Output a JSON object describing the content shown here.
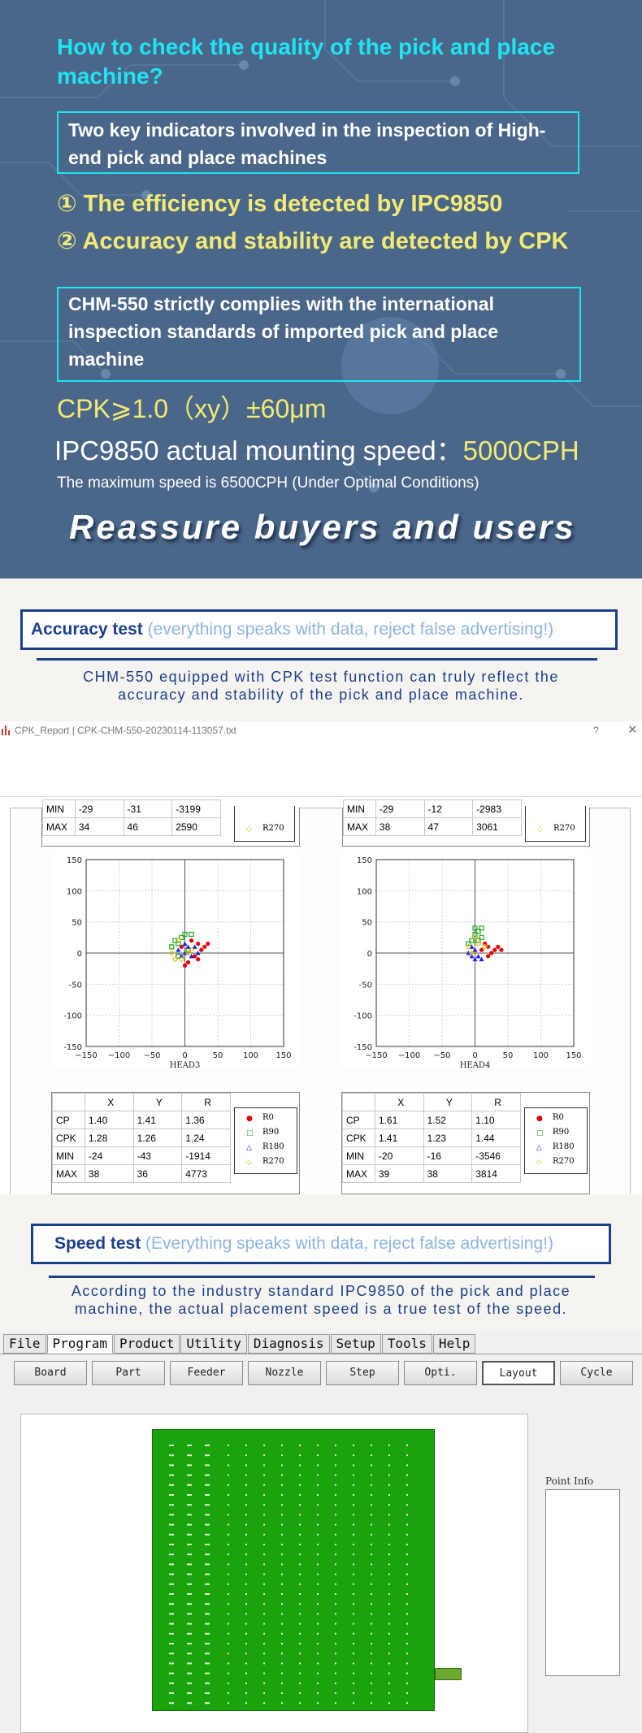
{
  "hero": {
    "title": "How to check the quality of the pick and place machine?",
    "box1": "Two key indicators involved in the inspection of High-end pick and place machines",
    "indicator1": "① The efficiency is detected by IPC9850",
    "indicator2": "② Accuracy and stability are detected by CPK",
    "box2": "CHM-550 strictly complies with the international inspection standards of imported pick and place machine",
    "cpk_spec": "CPK⩾1.0（xy）±60μm",
    "speed_label": "IPC9850 actual mounting speed：",
    "speed_value": "5000CPH",
    "max_speed": "The maximum speed is 6500CPH (Under Optimal Conditions)",
    "slogan": "Reassure buyers and users"
  },
  "accuracy": {
    "title": "Accuracy test",
    "subtitle": "(everything speaks with data, reject false advertising!)",
    "desc_line1": "CHM-550 equipped with CPK test function can truly reflect the",
    "desc_line2": "accuracy and stability of the pick and place machine."
  },
  "cpk_window": {
    "title": "CPK_Report | CPK-CHM-550-20230114-113057.txt",
    "help": "?",
    "close": "✕",
    "columns": [
      "",
      "X",
      "Y",
      "R"
    ],
    "legend": [
      "R0",
      "R90",
      "R180",
      "R270"
    ],
    "legend_colors": [
      "#e00000",
      "#22aa22",
      "#2222dd",
      "#e0c000"
    ],
    "top_left": {
      "min": [
        "MIN",
        "-29",
        "-31",
        "-3199"
      ],
      "max": [
        "MAX",
        "34",
        "46",
        "2590"
      ]
    },
    "top_right": {
      "min": [
        "MIN",
        "-29",
        "-12",
        "-2983"
      ],
      "max": [
        "MAX",
        "38",
        "47",
        "3061"
      ]
    },
    "head3": {
      "label": "HEAD3",
      "rows": [
        [
          "CP",
          "1.40",
          "1.41",
          "1.36"
        ],
        [
          "CPK",
          "1.28",
          "1.26",
          "1.24"
        ],
        [
          "MIN",
          "-24",
          "-43",
          "-1914"
        ],
        [
          "MAX",
          "38",
          "36",
          "4773"
        ]
      ]
    },
    "head4": {
      "label": "HEAD4",
      "rows": [
        [
          "CP",
          "1.61",
          "1.52",
          "1.10"
        ],
        [
          "CPK",
          "1.41",
          "1.23",
          "1.44"
        ],
        [
          "MIN",
          "-20",
          "-16",
          "-3546"
        ],
        [
          "MAX",
          "39",
          "38",
          "3814"
        ]
      ]
    },
    "axis_ticks_y": [
      "150",
      "100",
      "50",
      "0",
      "-50",
      "-100",
      "-150"
    ],
    "axis_ticks_x": [
      "−150",
      "−100",
      "−50",
      "0",
      "50",
      "100",
      "150"
    ]
  },
  "chart_data": [
    {
      "type": "scatter",
      "xlabel": "HEAD3",
      "xlim": [
        -150,
        150
      ],
      "ylim": [
        -150,
        150
      ],
      "grid": true,
      "series": [
        {
          "name": "R0",
          "points": [
            [
              10,
              20
            ],
            [
              20,
              15
            ],
            [
              25,
              5
            ],
            [
              30,
              10
            ],
            [
              15,
              -5
            ],
            [
              5,
              -15
            ],
            [
              -5,
              10
            ],
            [
              20,
              -10
            ],
            [
              35,
              15
            ],
            [
              0,
              -20
            ]
          ]
        },
        {
          "name": "R90",
          "points": [
            [
              -15,
              20
            ],
            [
              -10,
              15
            ],
            [
              -20,
              10
            ],
            [
              -5,
              25
            ],
            [
              0,
              30
            ],
            [
              10,
              30
            ],
            [
              -10,
              -5
            ],
            [
              5,
              5
            ]
          ]
        },
        {
          "name": "R180",
          "points": [
            [
              0,
              0
            ],
            [
              5,
              10
            ],
            [
              -5,
              -5
            ],
            [
              10,
              -5
            ],
            [
              15,
              10
            ],
            [
              -10,
              5
            ],
            [
              0,
              15
            ],
            [
              20,
              0
            ]
          ]
        },
        {
          "name": "R270",
          "points": [
            [
              -15,
              -10
            ],
            [
              -5,
              -10
            ],
            [
              5,
              0
            ],
            [
              -20,
              0
            ],
            [
              10,
              5
            ],
            [
              -10,
              20
            ]
          ]
        }
      ]
    },
    {
      "type": "scatter",
      "xlabel": "HEAD4",
      "xlim": [
        -150,
        150
      ],
      "ylim": [
        -150,
        150
      ],
      "grid": true,
      "series": [
        {
          "name": "R0",
          "points": [
            [
              20,
              10
            ],
            [
              30,
              5
            ],
            [
              35,
              10
            ],
            [
              25,
              0
            ],
            [
              15,
              15
            ],
            [
              10,
              5
            ],
            [
              20,
              -5
            ],
            [
              40,
              5
            ]
          ]
        },
        {
          "name": "R90",
          "points": [
            [
              0,
              30
            ],
            [
              5,
              35
            ],
            [
              10,
              25
            ],
            [
              -5,
              20
            ],
            [
              10,
              40
            ],
            [
              0,
              40
            ],
            [
              -10,
              15
            ],
            [
              5,
              20
            ]
          ]
        },
        {
          "name": "R180",
          "points": [
            [
              -5,
              -5
            ],
            [
              0,
              -10
            ],
            [
              5,
              -5
            ],
            [
              -10,
              0
            ],
            [
              0,
              5
            ],
            [
              10,
              -10
            ],
            [
              -5,
              10
            ]
          ]
        },
        {
          "name": "R270",
          "points": [
            [
              -10,
              10
            ],
            [
              -5,
              0
            ],
            [
              5,
              15
            ],
            [
              0,
              25
            ],
            [
              15,
              10
            ]
          ]
        }
      ]
    }
  ],
  "speed": {
    "title": "Speed test",
    "subtitle": "(Everything speaks with data, reject false advertising!)",
    "desc_line1": "According to the industry standard IPC9850 of the pick and place",
    "desc_line2": "machine, the actual placement speed is a true test of the speed."
  },
  "program": {
    "menu": [
      "File",
      "Program",
      "Product",
      "Utility",
      "Diagnosis",
      "Setup",
      "Tools",
      "Help"
    ],
    "toolbar": [
      "Board",
      "Part",
      "Feeder",
      "Nozzle",
      "Step",
      "Opti.",
      "Layout",
      "Cycle"
    ],
    "point_info": "Point Info"
  }
}
